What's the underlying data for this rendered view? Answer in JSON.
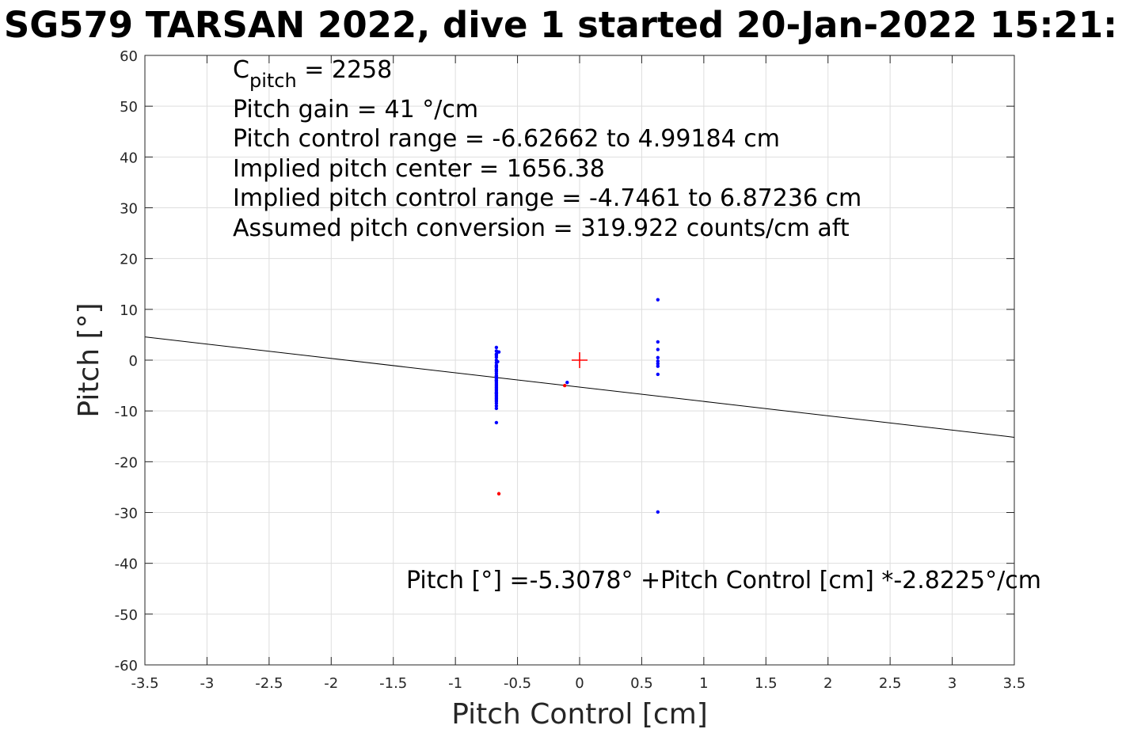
{
  "chart_data": {
    "type": "scatter",
    "title": "SG579 TARSAN 2022, dive 1 started 20-Jan-2022 15:21:",
    "xlabel": "Pitch Control [cm]",
    "ylabel": "Pitch [°]",
    "xlim": [
      -3.5,
      3.5
    ],
    "ylim": [
      -60,
      60
    ],
    "xticks": [
      -3.5,
      -3,
      -2.5,
      -2,
      -1.5,
      -1,
      -0.5,
      0,
      0.5,
      1,
      1.5,
      2,
      2.5,
      3,
      3.5
    ],
    "yticks": [
      -60,
      -50,
      -40,
      -30,
      -20,
      -10,
      0,
      10,
      20,
      30,
      40,
      50,
      60
    ],
    "grid": true,
    "annotations": {
      "c_pitch_symbol": "C",
      "c_pitch_subscript": "pitch",
      "c_pitch_value": " = 2258",
      "lines": [
        "Pitch gain = 41 °/cm",
        "Pitch control range = -6.62662 to 4.99184 cm",
        "Implied pitch center = 1656.38",
        "Implied pitch control range = -4.7461 to 6.87236 cm",
        "Assumed pitch conversion = 319.922 counts/cm aft"
      ],
      "fit_equation": "Pitch [°] =-5.3078° +Pitch Control [cm] *-2.8225°/cm"
    },
    "fit_line": {
      "intercept": -5.3078,
      "slope": -2.8225,
      "color": "#000000"
    },
    "center_marker": {
      "x": 0,
      "y": 0,
      "color": "#ff0000"
    },
    "series": [
      {
        "color": "#0000ff",
        "x": [
          -0.67,
          -0.67,
          -0.67,
          -0.67,
          -0.67,
          -0.67,
          -0.67,
          -0.67,
          -0.67,
          -0.67,
          -0.67,
          -0.67,
          -0.67,
          -0.67,
          -0.67,
          -0.67,
          -0.67,
          -0.67,
          -0.67,
          -0.67,
          -0.67,
          -0.67,
          -0.67,
          -0.67,
          -0.67,
          -0.67,
          -0.67,
          -0.67,
          -0.67,
          -0.67,
          -0.67,
          -0.67,
          -0.67,
          -0.67,
          -0.67,
          -0.67,
          -0.67,
          -0.67,
          -0.67,
          -0.65,
          -0.66,
          -0.1,
          0.63,
          0.63,
          0.63,
          0.63,
          0.63,
          0.63,
          0.63,
          0.63
        ],
        "y": [
          2.5,
          1.8,
          1.2,
          0.6,
          0.0,
          -0.5,
          -1.0,
          -1.4,
          -1.8,
          -2.2,
          -2.6,
          -3.0,
          -3.3,
          -3.6,
          -3.9,
          -4.2,
          -4.5,
          -4.8,
          -5.1,
          -5.4,
          -5.7,
          -6.0,
          -6.3,
          -6.6,
          -6.9,
          -7.2,
          -7.5,
          -7.8,
          -8.1,
          -8.5,
          -9.0,
          -9.5,
          -2.0,
          -4.0,
          -6.5,
          1.0,
          -1.2,
          -3.2,
          -12.3,
          1.6,
          -0.3,
          -4.4,
          11.9,
          3.6,
          2.1,
          0.5,
          -0.2,
          -0.7,
          -1.2,
          -2.8
        ]
      },
      {
        "color": "#0000ff",
        "x": [
          0.63
        ],
        "y": [
          -29.9
        ]
      },
      {
        "color": "#ff0000",
        "x": [
          -0.65,
          -0.12
        ],
        "y": [
          -26.3,
          -5.0
        ]
      }
    ]
  }
}
